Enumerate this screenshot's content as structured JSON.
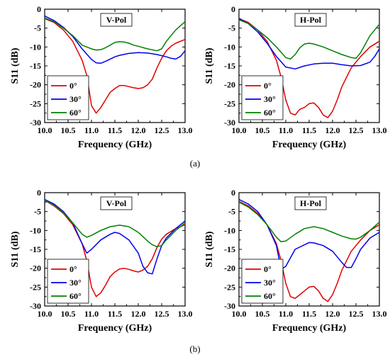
{
  "captions": [
    "(a)",
    "(b)"
  ],
  "chart_data": [
    {
      "type": "line",
      "panel_label": "V-Pol",
      "xlabel": "Frequency (GHz)",
      "ylabel": "S11 (dB)",
      "xlim": [
        10.0,
        13.0
      ],
      "ylim": [
        -30,
        0
      ],
      "xticks": [
        "10.0",
        "10.5",
        "11.0",
        "11.5",
        "12.0",
        "12.5",
        "13.0"
      ],
      "yticks": [
        "0",
        "-5",
        "-10",
        "-15",
        "-20",
        "-25",
        "-30"
      ],
      "legend_position": "bottom-left",
      "series": [
        {
          "name": "0°",
          "color": "#e00000",
          "x": [
            10.0,
            10.2,
            10.4,
            10.6,
            10.8,
            10.9,
            11.0,
            11.1,
            11.2,
            11.3,
            11.4,
            11.5,
            11.6,
            11.7,
            11.8,
            11.9,
            12.0,
            12.1,
            12.2,
            12.3,
            12.4,
            12.5,
            12.6,
            12.7,
            12.8,
            13.0
          ],
          "y": [
            -2.5,
            -3.5,
            -5.5,
            -8.5,
            -13.5,
            -17.5,
            -25.5,
            -27.5,
            -26.0,
            -24.0,
            -22.0,
            -21.0,
            -20.2,
            -20.2,
            -20.5,
            -20.8,
            -21.0,
            -20.8,
            -20.0,
            -18.5,
            -15.5,
            -13.0,
            -11.0,
            -9.8,
            -9.0,
            -8.0
          ]
        },
        {
          "name": "30°",
          "color": "#0000ee",
          "x": [
            10.0,
            10.2,
            10.4,
            10.6,
            10.8,
            11.0,
            11.1,
            11.2,
            11.3,
            11.4,
            11.5,
            11.6,
            11.8,
            12.0,
            12.2,
            12.4,
            12.6,
            12.7,
            12.8,
            12.9,
            13.0
          ],
          "y": [
            -1.8,
            -3.0,
            -4.8,
            -7.2,
            -10.5,
            -13.3,
            -14.2,
            -14.3,
            -13.8,
            -13.2,
            -12.6,
            -12.2,
            -11.7,
            -11.5,
            -11.6,
            -12.0,
            -12.6,
            -13.0,
            -13.2,
            -12.5,
            -11.0
          ]
        },
        {
          "name": "60°",
          "color": "#008000",
          "x": [
            10.0,
            10.2,
            10.4,
            10.6,
            10.8,
            11.0,
            11.1,
            11.2,
            11.3,
            11.4,
            11.5,
            11.6,
            11.7,
            11.8,
            11.9,
            12.0,
            12.2,
            12.4,
            12.5,
            12.6,
            12.8,
            13.0
          ],
          "y": [
            -2.3,
            -3.3,
            -5.0,
            -7.0,
            -9.5,
            -10.5,
            -10.8,
            -10.7,
            -10.2,
            -9.5,
            -8.8,
            -8.6,
            -8.7,
            -9.0,
            -9.5,
            -9.8,
            -10.5,
            -11.0,
            -10.5,
            -8.5,
            -5.5,
            -3.3
          ]
        }
      ]
    },
    {
      "type": "line",
      "panel_label": "H-Pol",
      "xlabel": "Frequency (GHz)",
      "ylabel": "S11 (dB)",
      "xlim": [
        10.0,
        13.0
      ],
      "ylim": [
        -30,
        0
      ],
      "xticks": [
        "10.0",
        "10.5",
        "11.0",
        "11.5",
        "12.0",
        "12.5",
        "13.0"
      ],
      "yticks": [
        "0",
        "-5",
        "-10",
        "-15",
        "-20",
        "-25",
        "-30"
      ],
      "legend_position": "bottom-left",
      "series": [
        {
          "name": "0°",
          "color": "#e00000",
          "x": [
            10.0,
            10.2,
            10.4,
            10.6,
            10.8,
            10.9,
            11.0,
            11.1,
            11.2,
            11.3,
            11.4,
            11.5,
            11.6,
            11.7,
            11.8,
            11.9,
            12.0,
            12.1,
            12.2,
            12.4,
            12.6,
            12.8,
            13.0
          ],
          "y": [
            -2.5,
            -3.5,
            -5.5,
            -8.5,
            -13.5,
            -18.0,
            -24.0,
            -27.5,
            -28.0,
            -26.5,
            -26.0,
            -25.0,
            -24.8,
            -26.0,
            -28.0,
            -28.7,
            -27.0,
            -24.0,
            -20.5,
            -15.5,
            -12.5,
            -10.0,
            -8.5
          ]
        },
        {
          "name": "30°",
          "color": "#0000ee",
          "x": [
            10.0,
            10.2,
            10.4,
            10.6,
            10.8,
            11.0,
            11.2,
            11.4,
            11.6,
            11.8,
            12.0,
            12.2,
            12.4,
            12.6,
            12.8,
            12.9,
            13.0
          ],
          "y": [
            -2.5,
            -3.8,
            -6.0,
            -9.0,
            -12.5,
            -15.3,
            -15.8,
            -15.0,
            -14.5,
            -14.3,
            -14.3,
            -14.7,
            -15.0,
            -14.9,
            -14.0,
            -12.5,
            -10.5
          ]
        },
        {
          "name": "60°",
          "color": "#008000",
          "x": [
            10.0,
            10.2,
            10.4,
            10.6,
            10.8,
            11.0,
            11.1,
            11.2,
            11.3,
            11.4,
            11.5,
            11.6,
            11.8,
            12.0,
            12.2,
            12.4,
            12.5,
            12.6,
            12.8,
            13.0
          ],
          "y": [
            -2.8,
            -3.8,
            -5.5,
            -7.5,
            -10.0,
            -12.8,
            -13.2,
            -12.0,
            -10.2,
            -9.2,
            -9.0,
            -9.2,
            -10.0,
            -11.0,
            -12.0,
            -12.8,
            -13.0,
            -11.5,
            -7.0,
            -4.0
          ]
        }
      ]
    },
    {
      "type": "line",
      "panel_label": "V-Pol",
      "xlabel": "Frequency (GHz)",
      "ylabel": "S11 (dB)",
      "xlim": [
        10.0,
        13.0
      ],
      "ylim": [
        -30,
        0
      ],
      "xticks": [
        "10.0",
        "10.5",
        "11.0",
        "11.5",
        "12.0",
        "12.5",
        "13.0"
      ],
      "yticks": [
        "0",
        "-5",
        "-10",
        "-15",
        "-20",
        "-25",
        "-30"
      ],
      "legend_position": "bottom-left",
      "series": [
        {
          "name": "0°",
          "color": "#e00000",
          "x": [
            10.0,
            10.2,
            10.4,
            10.6,
            10.8,
            10.9,
            11.0,
            11.1,
            11.2,
            11.3,
            11.4,
            11.5,
            11.6,
            11.7,
            11.8,
            11.9,
            12.0,
            12.1,
            12.2,
            12.3,
            12.4,
            12.5,
            12.6,
            12.8,
            13.0
          ],
          "y": [
            -2.0,
            -3.5,
            -5.5,
            -8.5,
            -13.5,
            -18.0,
            -25.0,
            -27.5,
            -26.5,
            -24.5,
            -22.2,
            -21.0,
            -20.2,
            -20.0,
            -20.3,
            -20.7,
            -21.0,
            -20.5,
            -19.5,
            -17.5,
            -14.5,
            -12.3,
            -11.0,
            -9.5,
            -8.5
          ]
        },
        {
          "name": "30°",
          "color": "#0000ee",
          "x": [
            10.0,
            10.2,
            10.4,
            10.6,
            10.8,
            10.9,
            11.0,
            11.2,
            11.4,
            11.5,
            11.6,
            11.8,
            12.0,
            12.1,
            12.2,
            12.3,
            12.4,
            12.5,
            12.6,
            12.8,
            13.0
          ],
          "y": [
            -1.8,
            -3.0,
            -5.0,
            -8.0,
            -13.5,
            -16.0,
            -15.0,
            -12.5,
            -11.0,
            -10.5,
            -10.8,
            -12.5,
            -16.0,
            -19.5,
            -21.2,
            -21.5,
            -17.5,
            -14.0,
            -12.0,
            -9.5,
            -7.5
          ]
        },
        {
          "name": "60°",
          "color": "#008000",
          "x": [
            10.0,
            10.2,
            10.4,
            10.6,
            10.8,
            10.9,
            11.0,
            11.2,
            11.4,
            11.6,
            11.8,
            12.0,
            12.2,
            12.3,
            12.4,
            12.5,
            12.6,
            12.8,
            13.0
          ],
          "y": [
            -2.0,
            -3.3,
            -5.3,
            -8.0,
            -11.0,
            -11.8,
            -11.3,
            -10.0,
            -9.0,
            -8.6,
            -9.0,
            -10.5,
            -12.8,
            -13.8,
            -14.3,
            -14.0,
            -12.5,
            -10.0,
            -8.0
          ]
        }
      ]
    },
    {
      "type": "line",
      "panel_label": "H-Pol",
      "xlabel": "Frequency (GHz)",
      "ylabel": "S11 (dB)",
      "xlim": [
        10.0,
        13.0
      ],
      "ylim": [
        -30,
        0
      ],
      "xticks": [
        "10.0",
        "10.5",
        "11.0",
        "11.5",
        "12.0",
        "12.5",
        "13.0"
      ],
      "yticks": [
        "0",
        "-5",
        "-10",
        "-15",
        "-20",
        "-25",
        "-30"
      ],
      "legend_position": "bottom-left",
      "series": [
        {
          "name": "0°",
          "color": "#e00000",
          "x": [
            10.0,
            10.2,
            10.4,
            10.6,
            10.8,
            10.9,
            11.0,
            11.1,
            11.2,
            11.3,
            11.4,
            11.5,
            11.6,
            11.7,
            11.8,
            11.9,
            12.0,
            12.1,
            12.2,
            12.4,
            12.6,
            12.8,
            13.0
          ],
          "y": [
            -2.3,
            -3.5,
            -5.5,
            -8.5,
            -13.5,
            -18.0,
            -24.0,
            -27.5,
            -28.0,
            -27.0,
            -26.0,
            -25.0,
            -24.8,
            -26.0,
            -28.0,
            -28.8,
            -27.0,
            -24.0,
            -20.5,
            -15.5,
            -12.5,
            -10.0,
            -8.5
          ]
        },
        {
          "name": "30°",
          "color": "#0000ee",
          "x": [
            10.0,
            10.2,
            10.4,
            10.6,
            10.8,
            10.9,
            11.0,
            11.2,
            11.4,
            11.5,
            11.6,
            11.8,
            12.0,
            12.2,
            12.3,
            12.4,
            12.5,
            12.6,
            12.8,
            13.0
          ],
          "y": [
            -1.8,
            -3.0,
            -5.0,
            -8.5,
            -14.0,
            -20.3,
            -19.5,
            -15.0,
            -13.8,
            -13.2,
            -13.3,
            -14.0,
            -15.5,
            -18.5,
            -19.8,
            -19.8,
            -17.5,
            -15.0,
            -12.0,
            -10.5
          ]
        },
        {
          "name": "60°",
          "color": "#008000",
          "x": [
            10.0,
            10.2,
            10.4,
            10.6,
            10.8,
            10.9,
            11.0,
            11.2,
            11.4,
            11.6,
            11.8,
            12.0,
            12.2,
            12.4,
            12.5,
            12.6,
            12.8,
            13.0
          ],
          "y": [
            -2.5,
            -3.8,
            -5.8,
            -8.5,
            -11.8,
            -13.0,
            -12.8,
            -11.0,
            -9.5,
            -9.0,
            -9.5,
            -10.5,
            -11.5,
            -12.2,
            -12.3,
            -11.8,
            -10.0,
            -7.8
          ]
        }
      ]
    }
  ]
}
